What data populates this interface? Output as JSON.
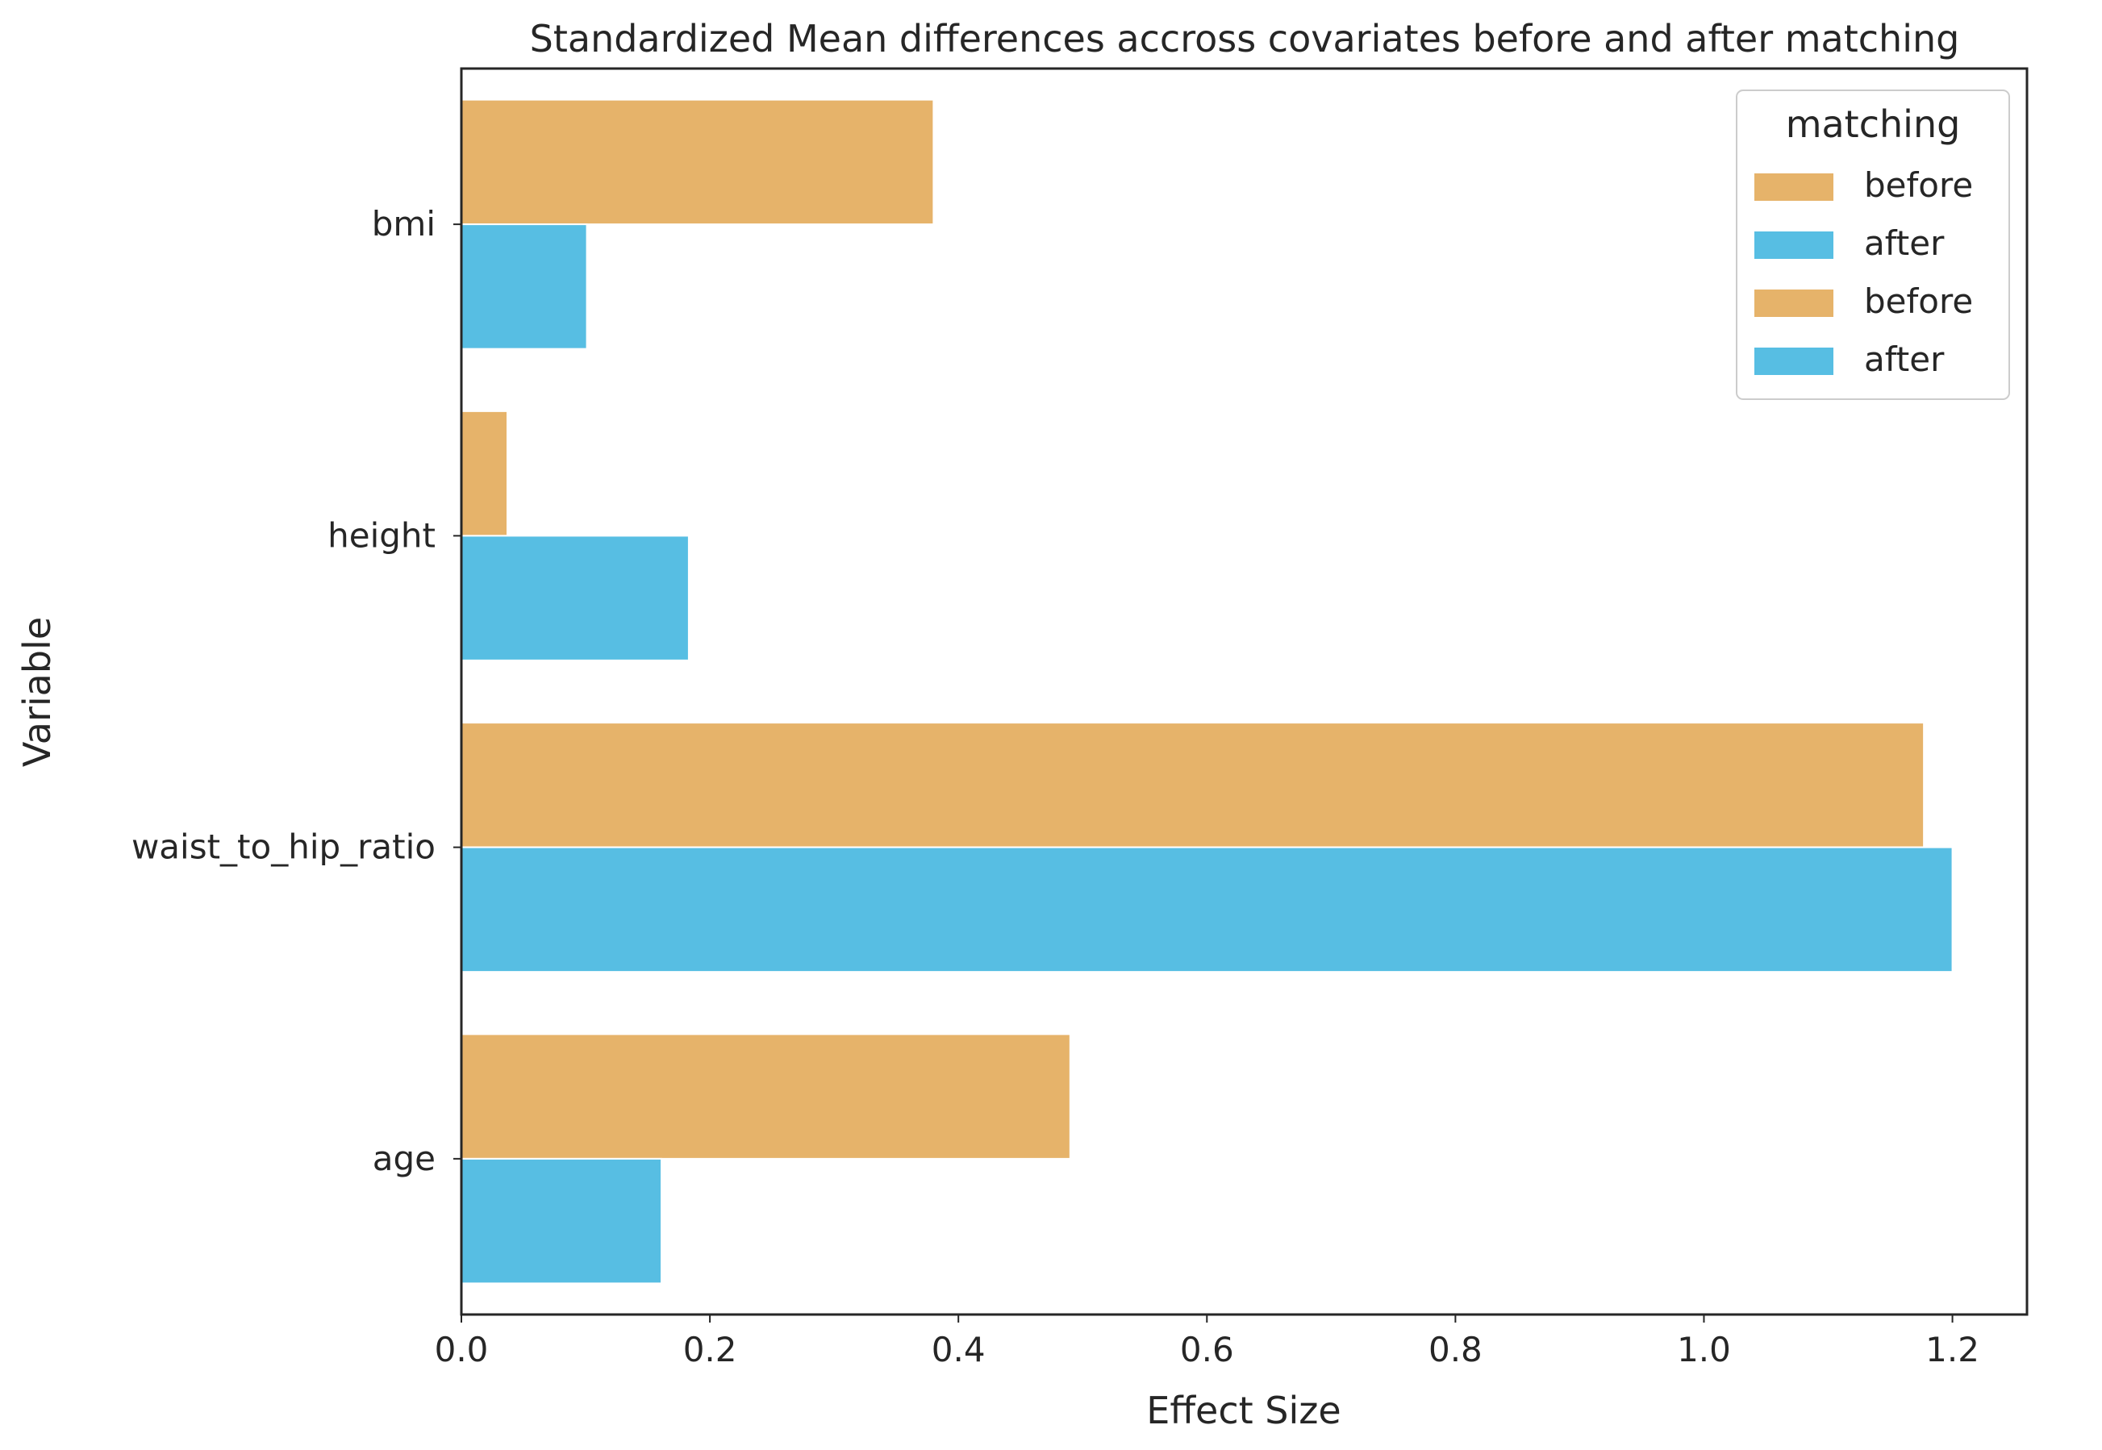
{
  "chart_data": {
    "type": "bar",
    "orientation": "horizontal",
    "title": "Standardized Mean differences accross covariates before and after matching",
    "xlabel": "Effect Size",
    "ylabel": "Variable",
    "categories": [
      "bmi",
      "height",
      "waist_to_hip_ratio",
      "age"
    ],
    "series": [
      {
        "name": "before",
        "values": [
          0.38,
          0.037,
          1.177,
          0.49
        ],
        "color": "#E6B36A"
      },
      {
        "name": "after",
        "values": [
          0.101,
          0.183,
          1.2,
          0.161
        ],
        "color": "#57BEE3"
      }
    ],
    "xlim": [
      0,
      1.26
    ],
    "xticks": [
      "0.0",
      "0.2",
      "0.4",
      "0.6",
      "0.8",
      "1.0",
      "1.2"
    ],
    "grid": false,
    "legend": {
      "title": "matching",
      "placement": "top-right",
      "entries": [
        {
          "label": "before",
          "color": "#E6B36A"
        },
        {
          "label": "after",
          "color": "#57BEE3"
        },
        {
          "label": "before",
          "color": "#E6B36A"
        },
        {
          "label": "after",
          "color": "#57BEE3"
        }
      ]
    }
  }
}
